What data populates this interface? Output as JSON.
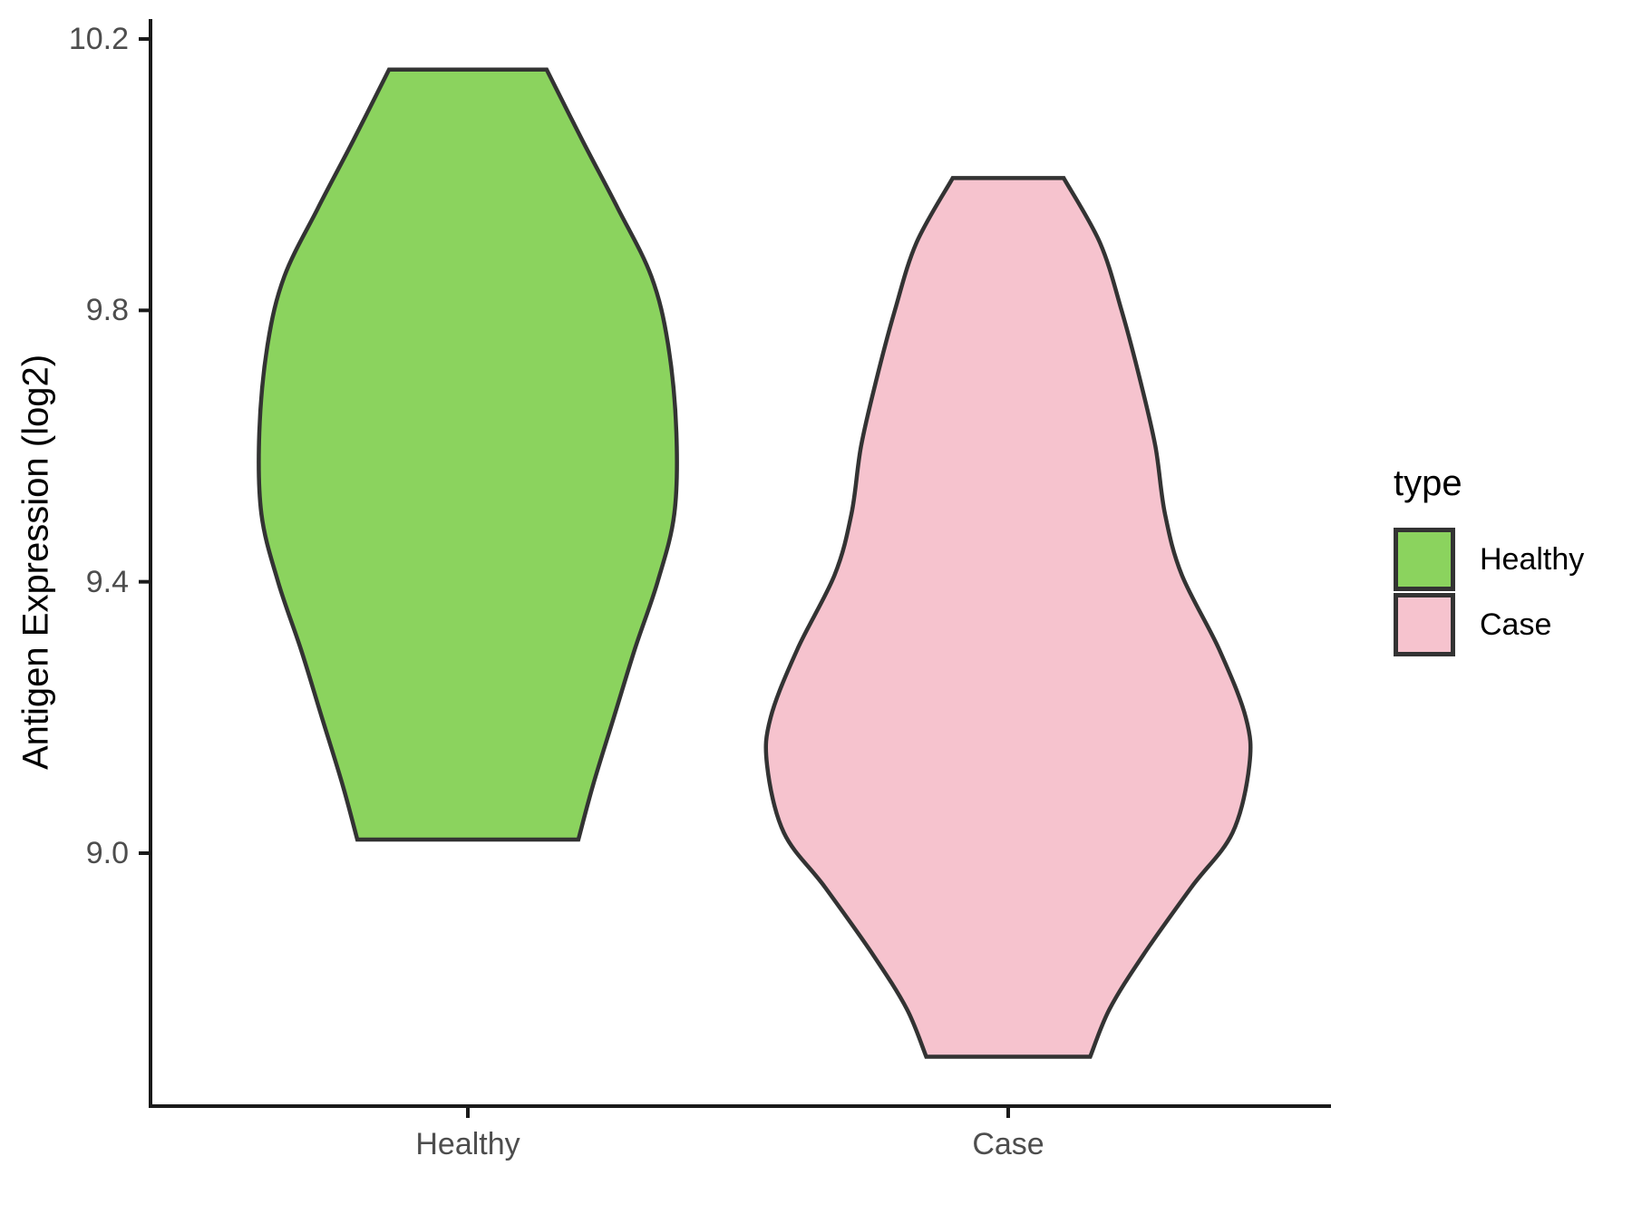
{
  "chart_data": {
    "type": "violin",
    "title": "",
    "xlabel": "",
    "ylabel": "Antigen Expression (log2)",
    "categories": [
      "Healthy",
      "Case"
    ],
    "y_ticks": [
      "10.2",
      "9.8",
      "9.4",
      "9.0"
    ],
    "y_tick_values": [
      10.2,
      9.8,
      9.4,
      9.0
    ],
    "y_axis_range": [
      8.6,
      10.23
    ],
    "grid": "off",
    "legend_position": "right",
    "series": [
      {
        "name": "Healthy",
        "fill": "#8BD35E",
        "outline": "#333333",
        "data_range": [
          9.02,
          10.16
        ],
        "peak_density_at": 9.62,
        "profile": [
          [
            10.155,
            0.378
          ],
          [
            10.05,
            0.55
          ],
          [
            9.95,
            0.72
          ],
          [
            9.85,
            0.88
          ],
          [
            9.75,
            0.96
          ],
          [
            9.62,
            1.0
          ],
          [
            9.5,
            0.99
          ],
          [
            9.4,
            0.91
          ],
          [
            9.3,
            0.8
          ],
          [
            9.2,
            0.7
          ],
          [
            9.1,
            0.6
          ],
          [
            9.02,
            0.53
          ]
        ]
      },
      {
        "name": "Case",
        "fill": "#F6C3CE",
        "outline": "#333333",
        "data_range": [
          8.7,
          10.0
        ],
        "peak_density_at": 9.13,
        "profile": [
          [
            9.995,
            0.23
          ],
          [
            9.9,
            0.38
          ],
          [
            9.8,
            0.47
          ],
          [
            9.7,
            0.545
          ],
          [
            9.6,
            0.61
          ],
          [
            9.5,
            0.65
          ],
          [
            9.41,
            0.72
          ],
          [
            9.3,
            0.875
          ],
          [
            9.2,
            0.985
          ],
          [
            9.13,
            1.0
          ],
          [
            9.03,
            0.93
          ],
          [
            8.95,
            0.76
          ],
          [
            8.85,
            0.56
          ],
          [
            8.77,
            0.42
          ],
          [
            8.7,
            0.34
          ]
        ]
      }
    ]
  },
  "legend": {
    "title": "type",
    "items": [
      {
        "label": "Healthy",
        "color": "#8BD35E"
      },
      {
        "label": "Case",
        "color": "#F6C3CE"
      }
    ]
  },
  "axes": {
    "line_color": "#1a1a1a",
    "tick_label_color": "#4d4d4d",
    "title_color": "#000000"
  }
}
